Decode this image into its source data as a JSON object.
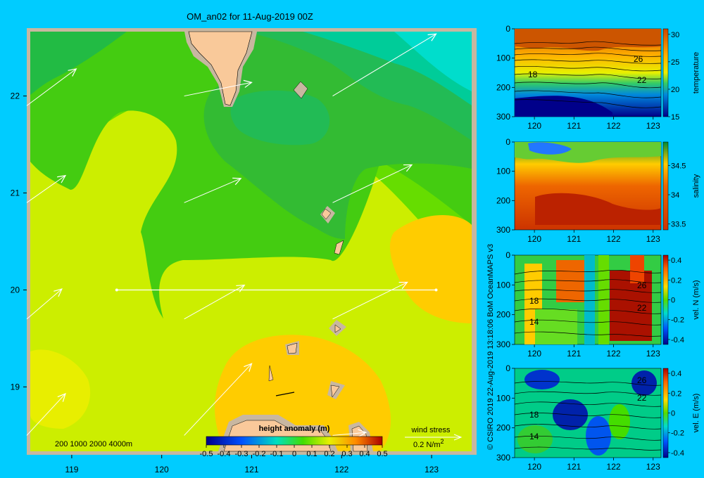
{
  "title": "OM_an02 for 11-Aug-2019 00Z",
  "map": {
    "x_ticks": [
      "119",
      "120",
      "121",
      "122",
      "123"
    ],
    "y_ticks": [
      "22",
      "21",
      "20",
      "19"
    ],
    "depth_legend": "200  1000  2000  4000m",
    "colorbar_label": "height anomaly  (m)",
    "colorbar_ticks": [
      "-0.5",
      "-0.4",
      "-0.3",
      "-0.2",
      "-0.1",
      "0",
      "0.1",
      "0.2",
      "0.3",
      "0.4",
      "0.5"
    ],
    "wind_label": "wind stress",
    "wind_scale": "0.2 N/m",
    "wind_scale_sup": "2"
  },
  "credit": "© CSIRO 2019   22-Aug-2019 13:18:06 BoM OceanMAPS v3",
  "sections": [
    {
      "label": "temperature",
      "cb_ticks": [
        "30",
        "25",
        "20",
        "15"
      ],
      "contour_labels": [
        "26",
        "22",
        "18"
      ]
    },
    {
      "label": "salinity",
      "cb_ticks": [
        "34.5",
        "34",
        "33.5"
      ],
      "contour_labels": []
    },
    {
      "label": "vel. N (m/s)",
      "cb_ticks": [
        "0.4",
        "0.2",
        "0",
        "-0.2",
        "-0.4"
      ],
      "contour_labels": [
        "26",
        "22",
        "18",
        "14"
      ]
    },
    {
      "label": "vel. E (m/s)",
      "cb_ticks": [
        "0.4",
        "0.2",
        "0",
        "-0.2",
        "-0.4"
      ],
      "contour_labels": [
        "22",
        "18",
        "14",
        "26"
      ]
    }
  ],
  "section_axes": {
    "x_ticks": [
      "120",
      "121",
      "122",
      "123"
    ],
    "y_ticks": [
      "0",
      "100",
      "200",
      "300"
    ]
  },
  "chart_data": {
    "type": "heatmap",
    "title": "OM_an02 for 11-Aug-2019 00Z",
    "x_range": [
      118.5,
      123.5
    ],
    "y_range": [
      18.3,
      22.7
    ],
    "colorbar": {
      "label": "height anomaly  (m)",
      "range": [
        -0.5,
        0.5
      ]
    },
    "section_line": {
      "lat": 20.0,
      "lon_start": 119.5,
      "lon_end": 123.05
    },
    "wind_vectors": [
      {
        "lon": 118.5,
        "lat": 21.9,
        "dx": 0.55,
        "dy": 0.38
      },
      {
        "lon": 120.25,
        "lat": 22.0,
        "dx": 0.75,
        "dy": 0.14
      },
      {
        "lon": 121.9,
        "lat": 22.0,
        "dx": 1.15,
        "dy": 0.64
      },
      {
        "lon": 118.5,
        "lat": 20.9,
        "dx": 0.43,
        "dy": 0.28
      },
      {
        "lon": 120.25,
        "lat": 20.9,
        "dx": 0.63,
        "dy": 0.25
      },
      {
        "lon": 121.9,
        "lat": 20.9,
        "dx": 0.88,
        "dy": 0.39
      },
      {
        "lon": 118.5,
        "lat": 19.7,
        "dx": 0.39,
        "dy": 0.31
      },
      {
        "lon": 120.25,
        "lat": 19.7,
        "dx": 0.67,
        "dy": 0.35
      },
      {
        "lon": 121.9,
        "lat": 19.7,
        "dx": 0.83,
        "dy": 0.38
      },
      {
        "lon": 118.5,
        "lat": 18.5,
        "dx": 0.43,
        "dy": 0.43
      },
      {
        "lon": 120.25,
        "lat": 18.5,
        "dx": 0.75,
        "dy": 0.74
      },
      {
        "lon": 121.9,
        "lat": 18.5,
        "dx": 0.37,
        "dy": 0.03
      }
    ],
    "sections": {
      "x_range": [
        119.5,
        123.2
      ],
      "depth_range": [
        0,
        300
      ],
      "temperature_range": [
        15,
        31
      ],
      "salinity_range": [
        33.4,
        34.9
      ],
      "vel_N_range": [
        -0.45,
        0.45
      ],
      "vel_E_range": [
        -0.45,
        0.45
      ]
    }
  }
}
